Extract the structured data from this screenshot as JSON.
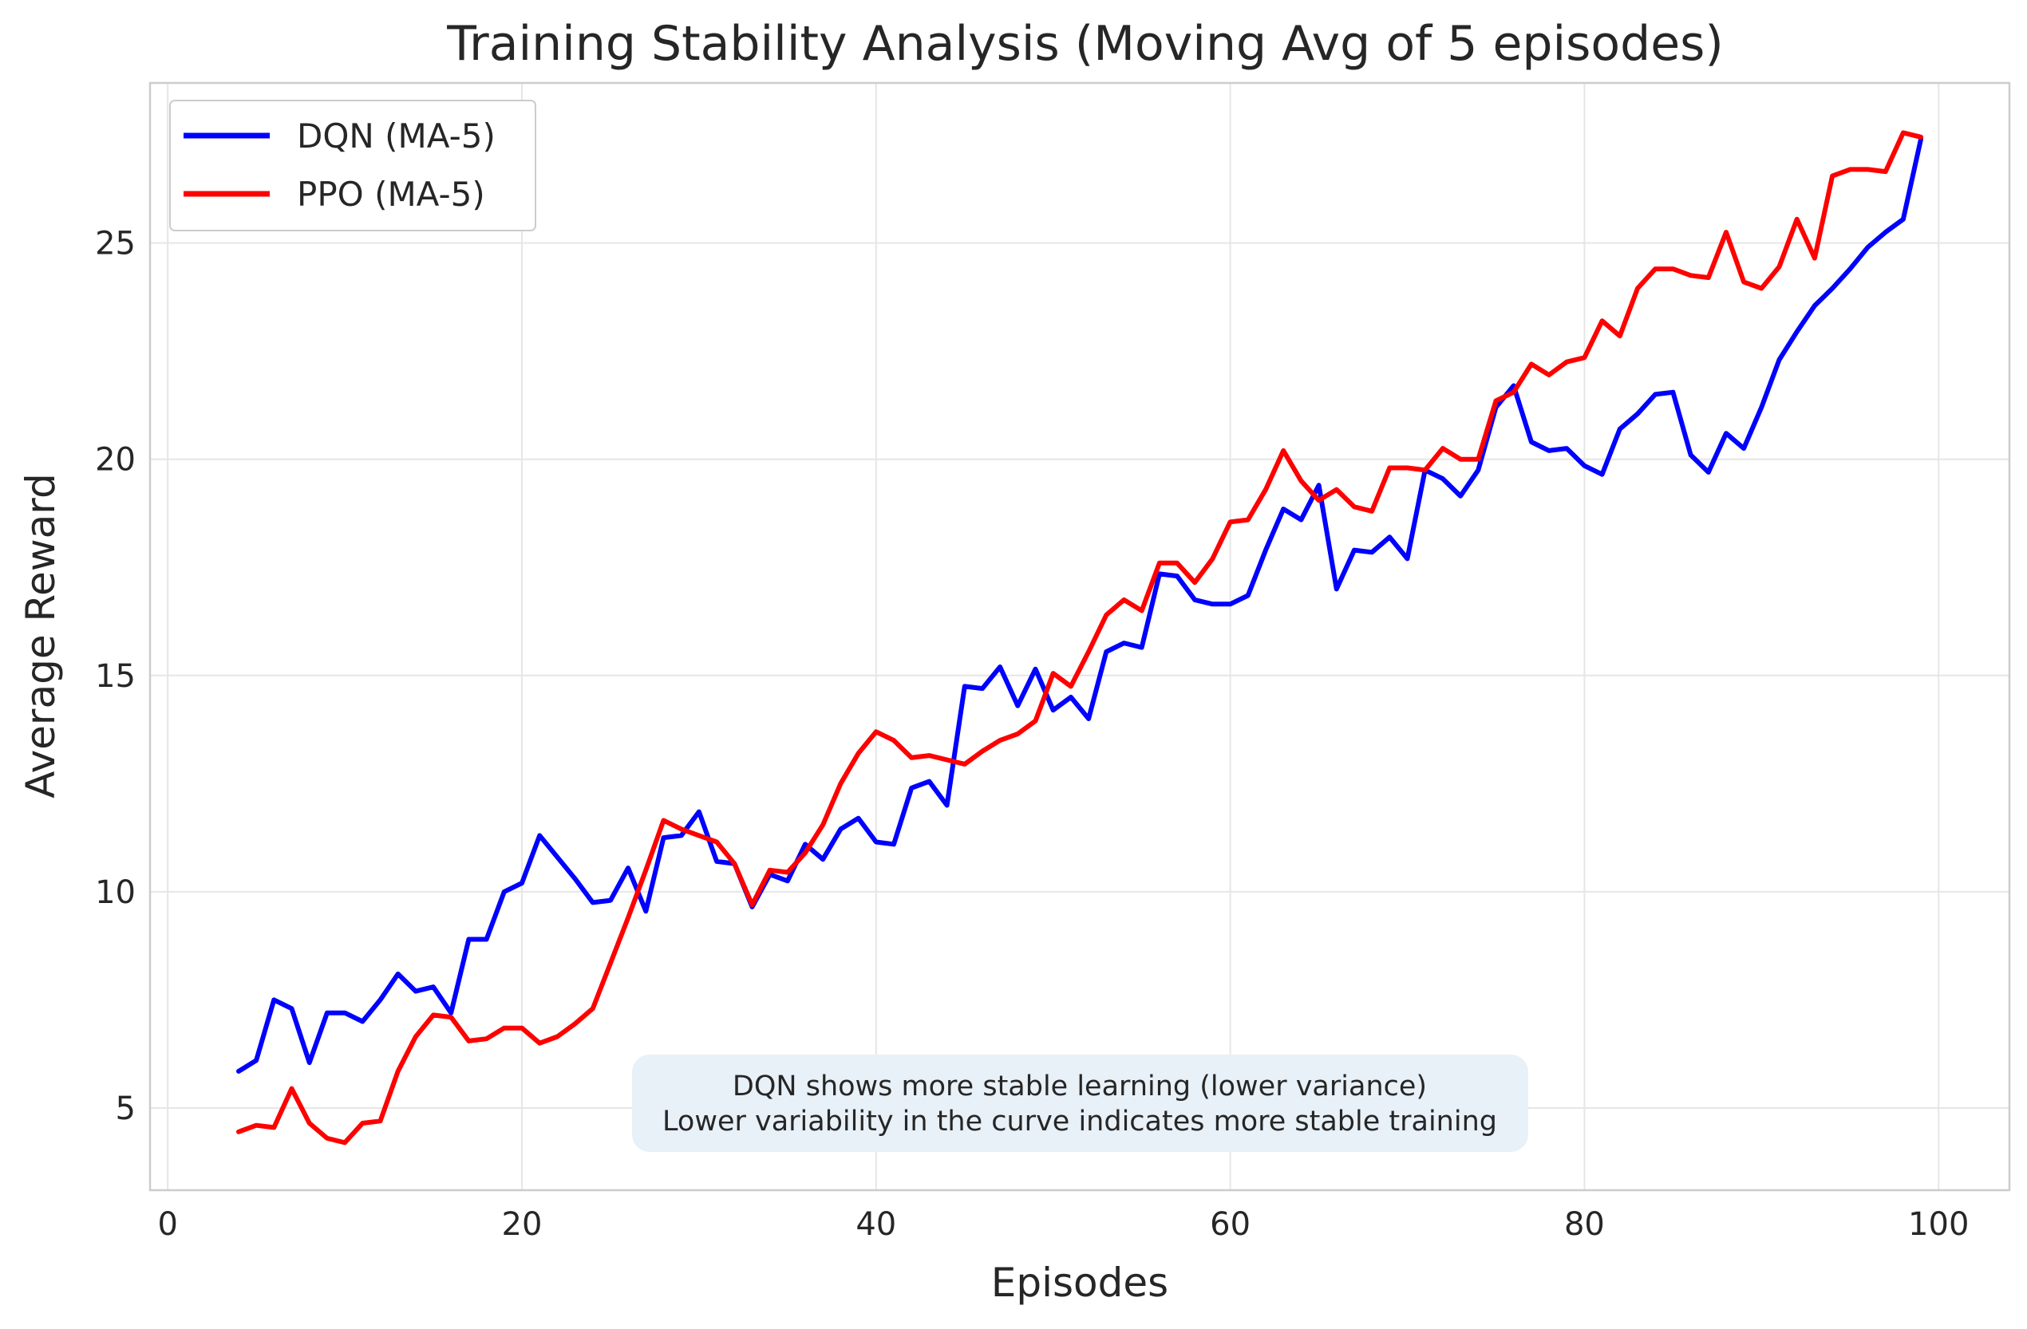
{
  "chart_data": {
    "type": "line",
    "title": "Training Stability Analysis (Moving Avg of 5 episodes)",
    "xlabel": "Episodes",
    "ylabel": "Average Reward",
    "xlim": [
      -1,
      104
    ],
    "ylim": [
      3.1,
      28.7
    ],
    "xticks": [
      0,
      20,
      40,
      60,
      80,
      100
    ],
    "yticks": [
      5,
      10,
      15,
      20,
      25
    ],
    "grid": true,
    "legend": "top-left",
    "x": [
      4,
      5,
      6,
      7,
      8,
      9,
      10,
      11,
      12,
      13,
      14,
      15,
      16,
      17,
      18,
      19,
      20,
      21,
      22,
      23,
      24,
      25,
      26,
      27,
      28,
      29,
      30,
      31,
      32,
      33,
      34,
      35,
      36,
      37,
      38,
      39,
      40,
      41,
      42,
      43,
      44,
      45,
      46,
      47,
      48,
      49,
      50,
      51,
      52,
      53,
      54,
      55,
      56,
      57,
      58,
      59,
      60,
      61,
      62,
      63,
      64,
      65,
      66,
      67,
      68,
      69,
      70,
      71,
      72,
      73,
      74,
      75,
      76,
      77,
      78,
      79,
      80,
      81,
      82,
      83,
      84,
      85,
      86,
      87,
      88,
      89,
      90,
      91,
      92,
      93,
      94,
      95,
      96,
      97,
      98,
      99
    ],
    "series": [
      {
        "name": "DQN (MA-5)",
        "color": "#0000ff",
        "values": [
          5.85,
          6.1,
          7.5,
          7.3,
          6.05,
          7.2,
          7.2,
          7.0,
          7.5,
          8.1,
          7.7,
          7.8,
          7.2,
          8.9,
          8.9,
          10.0,
          10.2,
          11.3,
          10.8,
          10.3,
          9.75,
          9.8,
          10.55,
          9.55,
          11.25,
          11.3,
          11.85,
          10.7,
          10.65,
          9.65,
          10.4,
          10.25,
          11.1,
          10.75,
          11.45,
          11.7,
          11.15,
          11.1,
          12.4,
          12.55,
          12.0,
          14.75,
          14.7,
          15.2,
          14.3,
          15.15,
          14.2,
          14.5,
          14.0,
          15.55,
          15.75,
          15.65,
          17.35,
          17.3,
          16.75,
          16.65,
          16.65,
          16.85,
          17.9,
          18.85,
          18.6,
          19.4,
          17.0,
          17.9,
          17.85,
          18.2,
          17.7,
          19.75,
          19.55,
          19.15,
          19.75,
          21.2,
          21.7,
          20.4,
          20.2,
          20.25,
          19.85,
          19.65,
          20.7,
          21.05,
          21.5,
          21.55,
          20.1,
          19.7,
          20.6,
          20.25,
          21.2,
          22.3,
          22.95,
          23.55,
          23.95,
          24.4,
          24.9,
          25.25,
          25.55,
          27.4
        ]
      },
      {
        "name": "PPO (MA-5)",
        "color": "#ff0000",
        "values": [
          4.45,
          4.6,
          4.55,
          5.45,
          4.65,
          4.3,
          4.2,
          4.65,
          4.7,
          5.85,
          6.65,
          7.15,
          7.1,
          6.55,
          6.6,
          6.85,
          6.85,
          6.5,
          6.65,
          6.95,
          7.3,
          8.35,
          9.4,
          10.5,
          11.65,
          11.45,
          11.3,
          11.15,
          10.65,
          9.7,
          10.5,
          10.45,
          10.9,
          11.55,
          12.5,
          13.2,
          13.7,
          13.5,
          13.1,
          13.15,
          13.05,
          12.95,
          13.25,
          13.5,
          13.65,
          13.95,
          15.05,
          14.75,
          15.55,
          16.4,
          16.75,
          16.5,
          17.6,
          17.6,
          17.15,
          17.7,
          18.55,
          18.6,
          19.3,
          20.2,
          19.5,
          19.05,
          19.3,
          18.9,
          18.8,
          19.8,
          19.8,
          19.75,
          20.25,
          20.0,
          20.0,
          21.35,
          21.55,
          22.2,
          21.95,
          22.25,
          22.35,
          23.2,
          22.85,
          23.95,
          24.4,
          24.4,
          24.25,
          24.2,
          25.25,
          24.1,
          23.95,
          24.45,
          25.55,
          24.65,
          26.55,
          26.7,
          26.7,
          26.65,
          27.55,
          27.45
        ]
      }
    ],
    "annotation": {
      "lines": [
        "DQN shows more stable learning (lower variance)",
        "Lower variability in the curve indicates more stable training"
      ]
    }
  }
}
